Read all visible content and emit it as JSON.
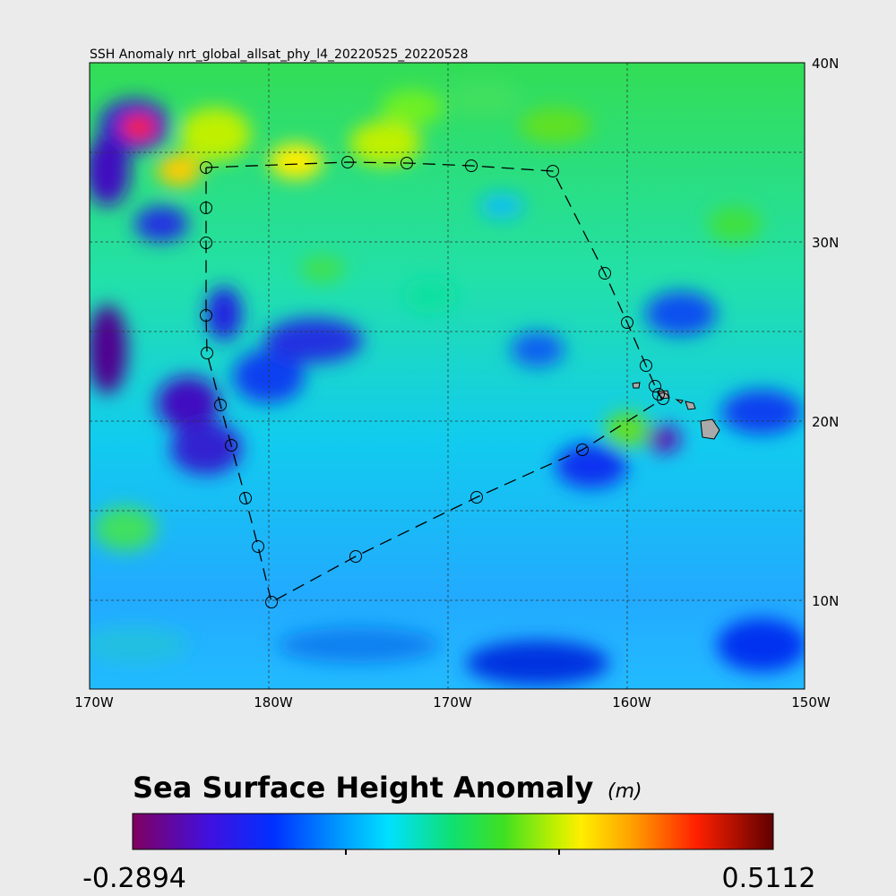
{
  "map": {
    "title": "SSH Anomaly nrt_global_allsat_phy_l4_20220525_20220528",
    "x_ticks": [
      "170W",
      "180W",
      "170W",
      "160W",
      "150W"
    ],
    "y_ticks": [
      "40N",
      "30N",
      "20N",
      "10N"
    ],
    "colorbar": {
      "title": "Sea Surface Height Anomaly",
      "unit": "(m)",
      "min": -0.2894,
      "max": 0.5112
    }
  }
}
